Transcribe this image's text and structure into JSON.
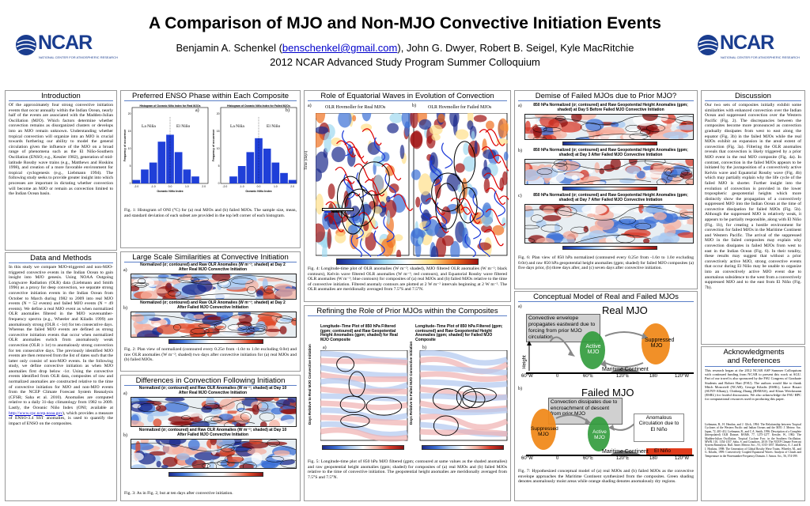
{
  "header": {
    "title": "A Comparison of MJO and Non-MJO Convective Initiation Events",
    "authors_before": "Benjamin A. Schenkel (",
    "email": "benschenkel@gmail.com",
    "authors_after": "), John G. Dwyer, Robert B. Seigel, Kyle MacRitchie",
    "subtitle": "2012 NCAR Advanced Study Program Summer Colloquium",
    "logo_text": "NCAR",
    "logo_sub": "NATIONAL CENTER FOR ATMOSPHERIC RESEARCH"
  },
  "intro": {
    "title": "Introduction",
    "text": "Of the approximately four strong convective initiation events that occur annually within the Indian Ocean, nearly half of the events are associated with the Madden-Julian Oscillation (MJO). Which factors determine whether convection remains as disorganized clusters or develops into an MJO remain unknown. Understanding whether tropical convection will organize into an MJO is crucial towards furthering our ability to model the general circulation given the influence of the MJO on a broad range of phenomena such as the El Niño-Southern Oscillation (ENSO; e.g., Kessler 1982), generation of mid-latitude Rossby wave trains (e.g., Matthews and Hoskins 1998), and creation of a more favorable environment for tropical cyclogenesis (e.g., Liebmann 1994). The following study seeks to provide greater insight into which processes are important in dictating whether convection will become an MJO or remain as convection limited to the Indian Ocean basin."
  },
  "data": {
    "title": "Data and Methods",
    "text": "In this study we compare MJO-triggered and non-MJO-triggered convective events in the Indian Ocean to gain insight into MJO genesis. Using NOAA Outgoing Longwave Radiation (OLR) data (Liebmann and Smith 1996) as a proxy for deep convection, we separate strong convective initiation events in the Indian Ocean from October to March during 1982 to 2009 into real MJO events (N = 52 events) and failed MJO events (N = 49 events). We define a real MJO event as when normalized OLR anomalies filtered in the MJO wavenumber-frequency spectra (e.g., Wheeler and Kiladis 1999) are anomalously strong (OLR ≤ -1σ) for ten consecutive days. Whereas the failed MJO events are defined as strong convective initiation events that occur when normalized OLR anomalies switch from anomalously weak convection (OLR ≥ 1σ) to anomalously strong convection for ten consecutive days. The previously identified MJO events are then removed from the list of dates such that the latter only consist of non-MJO events. In the following study, we define convective initiation as when MJO anomalies first drop below -1σ. Using the convective events identified from OLR data, composites of raw and normalized anomalies are constructed relative to the time of convective initiation for MJO and non-MJO events from the NCEP Climate Forecast System Reanalysis (CFSR; Saha et al. 2010). Anomalies are computed relative to a daily 31-day climatology from 1982 to 2009. Lastly, the Oceanic Niño Index (ONI; available at",
    "link": "http://www.cpc.ncep.noaa.gov",
    "text_after": "), which provides a measure of ENSO-3.4 SST anomalies, is used to quantify the impact of ENSO on the composites."
  },
  "enso": {
    "title": "Preferred ENSO Phase within Each Composite",
    "panel_a_title": "Histogram of Oceanic Niño Index for Real MJOs",
    "panel_b_title": "Histogram of Oceanic Niño Index for Failed MJOs",
    "label_a": "a)",
    "label_b": "b)",
    "lanina": "La Niña",
    "elnino": "El Niño",
    "ylabel": "Frequency of occurrence",
    "xlabel": "Oceanic Niño Index",
    "caption": "Fig. 1: Histogram of ONI (°C) for (a) real MJOs and (b) failed MJOs. The sample size, mean, and standard deviation of each subset are provided in the top left corner of each histogram."
  },
  "chart_data": [
    {
      "type": "bar",
      "title": "Histogram of Oceanic Niño Index for Real MJOs",
      "xlabel": "Oceanic Niño Index",
      "ylabel": "Frequency of occurrence",
      "categories": [
        "-2.0",
        "-1.5",
        "-1.0",
        "-0.5",
        "0.0",
        "0.5",
        "1.0",
        "1.5",
        "2.0"
      ],
      "values": [
        1,
        4,
        6,
        12,
        14,
        9,
        4,
        2,
        0
      ],
      "ylim": [
        0,
        20
      ]
    },
    {
      "type": "bar",
      "title": "Histogram of Oceanic Niño Index for Failed MJOs",
      "xlabel": "Oceanic Niño Index",
      "ylabel": "Frequency of occurrence",
      "categories": [
        "-2.0",
        "-1.5",
        "-1.0",
        "-0.5",
        "0.0",
        "0.5",
        "1.0",
        "1.5",
        "2.0"
      ],
      "values": [
        0,
        2,
        5,
        9,
        13,
        10,
        6,
        3,
        1
      ],
      "ylim": [
        0,
        20
      ]
    }
  ],
  "largescale": {
    "title": "Large Scale Similarities at Convective Initiation",
    "map_a_head": "Normalized (σ; contoured) and Raw OLR Anomalies (W m⁻²; shaded) at Day 2 After Real MJO Convective Initiation",
    "map_b_head": "Normalized (σ; contoured) and Raw OLR Anomalies (W m⁻²; shaded) at Day 2 After Failed MJO Convective Initiation",
    "label_a": "a)",
    "label_b": "b)",
    "cbar_labels": [
      "−20",
      "−15",
      "−10",
      "−5",
      "0",
      "5",
      "10",
      "15",
      "20"
    ],
    "caption": "Fig. 2: Plan view of normalized (contoured every 0.25σ from -1.0σ to 1.0σ excluding 0.0σ) and raw OLR anomalies (W m⁻²; shaded) two days after convective initiation for (a) real MJOs and (b) failed MJOs."
  },
  "differences": {
    "title": "Differences in Convection Following Initiation",
    "map_a_head": "Normalized (σ; contoured) and Raw OLR Anomalies (W m⁻²; shaded) at Day 10 After Real MJO Convective Initiation",
    "map_b_head": "Normalized (σ; contoured) and Raw OLR Anomalies (W m⁻²; shaded) at Day 10 After Failed MJO Convective Initiation",
    "label_a": "a)",
    "label_b": "b)",
    "caption": "Fig. 3: As in Fig. 2, but at ten days after convective initiation."
  },
  "waves": {
    "title": "Role of Equatorial Waves in Evolution of Convection",
    "label_a": "a)",
    "label_b": "b)",
    "head_a": "OLR Hovmoller for Real MJOs",
    "head_b": "OLR Hovmoller for Failed MJOs",
    "ylabel": "Time (days)",
    "legend": [
      "Anomaly",
      "MJO",
      "Kelvin",
      "ER"
    ],
    "cbar_labels": [
      "−15",
      "−10",
      "−5",
      "0",
      "5",
      "10",
      "15"
    ],
    "caption": "Fig. 4: Longitude-time plot of OLR anomalies (W m⁻²; shaded), MJO filtered OLR anomalies (W m⁻²; black contours), Kelvin wave filtered OLR anomalies (W m⁻²; red contours), and Equatorial Rossby wave filtered OLR anomalies (W m⁻²; blue contours) for composites of (a) real MJOs and (b) failed MJOs relative to the time of convective initiation. Filtered anomaly contours are plotted at 2 W m⁻² intervals beginning at 2 W m⁻². The OLR anomalies are meridionally averaged from 7.5°S and 7.5°N."
  },
  "prior": {
    "title": "Refining the Role of Prior MJOs within the Composites",
    "head_a": "Longitude–Time Plot of 850 hPa Filtered (gpm; contoured) and Raw Geopotential Height Anomalies (gpm; shaded) for Real MJO Composite",
    "head_b": "Longitude–Time Plot of 850 hPa Filtered (gpm; contoured) and Raw Geopotential Height Anomalies (gpm; shaded) for Failed MJO Composite",
    "label_a": "a)",
    "label_b": "b)",
    "ylabel": "Days Relative to Real MJO Convective Initiation",
    "ylabel_b": "Days Relative to Failed MJO Convective Initiation",
    "cbar_labels": [
      "−10",
      "−5",
      "−2.5",
      "0",
      "2.5",
      "5",
      "10"
    ],
    "caption": "Fig. 5: Longitude-time plot of 850 hPa MJO filtered (gpm; contoured at same values as the shaded anomalies) and raw geopotential height anomalies (gpm; shaded) for composites of (a) real MJOs and (b) failed MJOs relative to the time of convective initiation. The geopotential height anomalies are meridionally averaged from 7.5°S and 7.5°N."
  },
  "demise": {
    "title": "Demise of Failed MJOs due to Prior MJO?",
    "head_a": "850 hPa Normalized (σ; contoured) and Raw Geopotential Height Anomalies (gpm; shaded) at Day 5 Before Failed MJO Convective Initiation",
    "head_b": "850 hPa Normalized (σ; contoured) and Raw Geopotential Height Anomalies (gpm; shaded) at Day 3 After Failed MJO Convective Initiation",
    "head_c": "850 hPa Normalized (σ; contoured) and Raw Geopotential Height Anomalies (gpm; shaded) at Day 7 After Failed MJO Convective Initiation",
    "label_a": "a)",
    "label_b": "b)",
    "label_c": "c)",
    "cbar_labels": [
      "−10",
      "−5",
      "−2.5",
      "0",
      "2.5",
      "5",
      "10"
    ],
    "caption": "Fig. 6: Plan view of 850 hPa normalized (contoured every 0.25σ from -1.0σ to 1.0σ excluding 0.0σ) and raw 850 hPa geopotential height anomalies (gpm; shaded) for failed MJO composites (a) five days prior, (b) three days after, and (c) seven days after convective initiation."
  },
  "conceptual": {
    "title": "Conceptual Model of Real and Failed MJOs",
    "label_a": "a)",
    "label_b": "b)",
    "real_title": "Real MJO",
    "failed_title": "Failed MJO",
    "real_box": "Convective envelope propagates eastward due to forcing from prior MJO circulation",
    "failed_box": "Convection dissipates due to encroachment of descent from prior MJO",
    "active": "Active MJO",
    "suppressed": "Suppressed MJO",
    "anomalous": "Anomalous Circulation due to El Niño",
    "elnino_tag": "El Niño",
    "maritime": "Maritime Continent",
    "height": "Height",
    "lon_ticks": [
      "60°W",
      "0",
      "60°E",
      "120°E",
      "180",
      "120°W"
    ],
    "caption": "Fig. 7: Hypothesized conceptual model of (a) real MJOs and (b) failed MJOs as the convective envelope approaches the Maritime Continent synthesized from the composites. Green shading denotes anomalously moist areas while orange shading denotes anomalously dry regions."
  },
  "discussion": {
    "title": "Discussion",
    "text": "Our two sets of composites initially exhibit some similarities with enhanced convection over the Indian Ocean and suppressed convection over the Western Pacific (Fig. 2). The discrepancies between the composites become more pronounced as convection gradually dissipates from west to east along the equator (Fig. 3b) in the failed MJOs while the real MJOs exhibit an expansion in the areal extent of convection (Fig. 3a). Filtering the OLR anomalies reveals that convection is likely triggered by a prior MJO event in the real MJO composite (Fig. 4a). In contrast, convection in the failed MJOs appears to be initiated by the juxtaposition of a convectively active Kelvin wave and Equatorial Rossby wave (Fig. 4b) which may partially explain why the life cycle of the failed MJO is shorter. Further insight into the evolution of convection is provided in the lower tropospheric geopotential heights which more distinctly show the propagation of a convectively suppressed MJO into the Indian Ocean at the time of convective dissipation for failed MJOs (Fig. 5b). Although the suppressed MJO is relatively weak, it appears to be partially responsible, along with El Niño (Fig. 1b), for creating a hostile environment for convection for failed MJOs in the Maritime Continent and Western Pacific. The arrival of the suppressed MJO in the failed composites may explain why convection dissipates in failed MJOs from west to east in the Indian Ocean (Fig. 6). In their totality, these results may suggest that without a prior convectively active MJO, strong convective events that occur during El Niño may be unable to organize into an convectively active MJO event due to anomalous subsidence to the west from a convectively suppressed MJO and to the east from El Niño (Fig. 7b)."
  },
  "ack": {
    "title": "Acknowledgments and References",
    "text": "This research began at the 2012 NCAR ASP Summer Colloquium with continued funding from NCAR to present this work at AGU. Part of our travel is also sponsored by the FSU Congress of Graduate Students and Robert Hart (FSU). The authors would like to thank Mitch Moncrieff (NCAR), George Kiladis (ESRL), Lance Bosart (SUNY-Albany), Chidong Zhang (RSMAS), and Klaus Weickmann (ESRL) for fruitful discussions. We also acknowledge the FSU HPC for computational resources used in producing this paper.",
    "refs": "Liebmann, B., H. Hendon, and J. Glick, 1994: The Relationship between Tropical Cyclones of the Western Pacific and Indian Oceans and the MJO. J. Meteor. Soc. Japan, 72, 401-412. Liebmann, B., and C.A. Smith, 1996: Description of a Complete (Interpolated) OLR Dataset. BAMS, 77, 1275-1277. Kessler, W., 1982: The Madden-Julian Oscillation. Tropical Cyclone Forc. in the Southern Oscillation. MWR. 110, 1354-1357. Saha, S. and Coauthors, 2010: The NCEP Climate Forecast System Reanalysis. Bull. Amer. Meteor. Soc., 91, 1015-1057. Matthews, A. J. and B. J. Hoskins, 1998: The Generation of Global Rossby Wave Trains. Wheeler, M., and G. Kiladis, 1999: Convectively Coupled Equatorial Waves: Analysis of Clouds and Temperature in the Wavenumber-Frequency Domain. J. Atmos. Sci., 56, 374-399."
  }
}
